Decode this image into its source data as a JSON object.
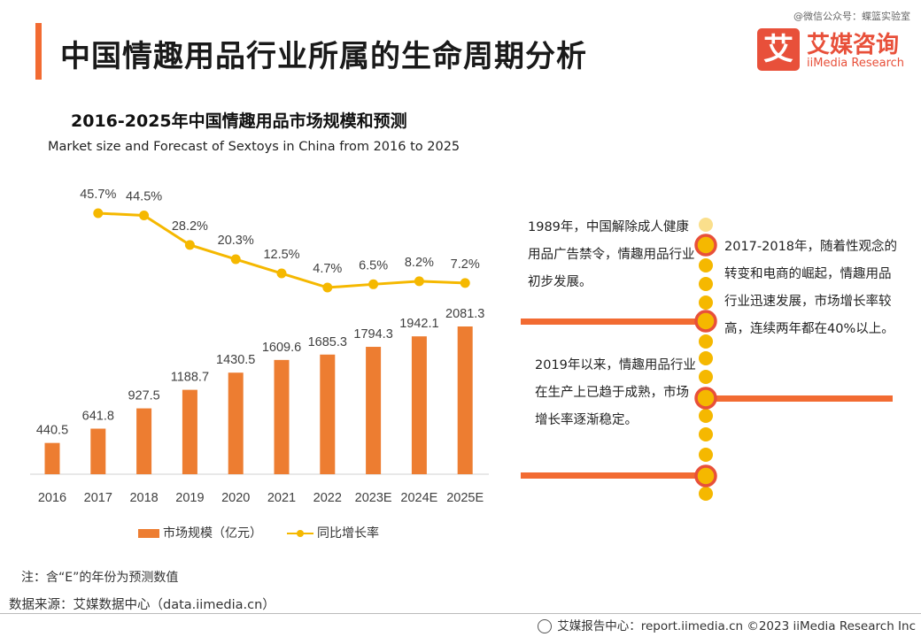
{
  "watermark": "@微信公众号：蝶篮实验室",
  "page_title": "中国情趣用品行业所属的生命周期分析",
  "logo": {
    "mark": "艾",
    "cn": "艾媒咨询",
    "en": "iiMedia Research"
  },
  "chart_data": {
    "type": "bar",
    "title": "2016-2025年中国情趣用品市场规模和预测",
    "subtitle": "Market size and Forecast of Sextoys in China from 2016 to 2025",
    "categories": [
      "2016",
      "2017",
      "2018",
      "2019",
      "2020",
      "2021",
      "2022",
      "2023E",
      "2024E",
      "2025E"
    ],
    "series": [
      {
        "name": "市场规模（亿元）",
        "type": "bar",
        "color": "#ed7d31",
        "values": [
          440.5,
          641.8,
          927.5,
          1188.7,
          1430.5,
          1609.6,
          1685.3,
          1794.3,
          1942.1,
          2081.3
        ],
        "labels": [
          "440.5",
          "641.8",
          "927.5",
          "1188.7",
          "1430.5",
          "1609.6",
          "1685.3",
          "1794.3",
          "1942.1",
          "2081.3"
        ]
      },
      {
        "name": "同比增长率",
        "type": "line",
        "color": "#f5b800",
        "values": [
          null,
          45.7,
          44.5,
          28.2,
          20.3,
          12.5,
          4.7,
          6.5,
          8.2,
          7.2
        ],
        "labels": [
          "",
          "45.7%",
          "44.5%",
          "28.2%",
          "20.3%",
          "12.5%",
          "4.7%",
          "6.5%",
          "8.2%",
          "7.2%"
        ]
      }
    ],
    "bar_ylim": [
      0,
      2200
    ],
    "line_ylim": [
      0,
      50
    ],
    "grid": false,
    "legend": "bottom"
  },
  "timeline": [
    "1989年，中国解除成人健康用品广告禁令，情趣用品行业初步发展。",
    "2017-2018年，随着性观念的转变和电商的崛起，情趣用品行业迅速发展，市场增长率较高，连续两年都在40%以上。",
    "2019年以来，情趣用品行业在生产上已趋于成熟，市场增长率逐渐稳定。"
  ],
  "colors": {
    "accent": "#f26b32",
    "bar": "#ed7d31",
    "line": "#f5b800",
    "timeline_dot": "#f5b800",
    "timeline_ring": "#e8503a"
  },
  "note": "注：含“E”的年份为预测数值",
  "source": "数据来源：艾媒数据中心（data.iimedia.cn）",
  "footer": "艾媒报告中心：report.iimedia.cn ©2023  iiMedia Research  Inc"
}
